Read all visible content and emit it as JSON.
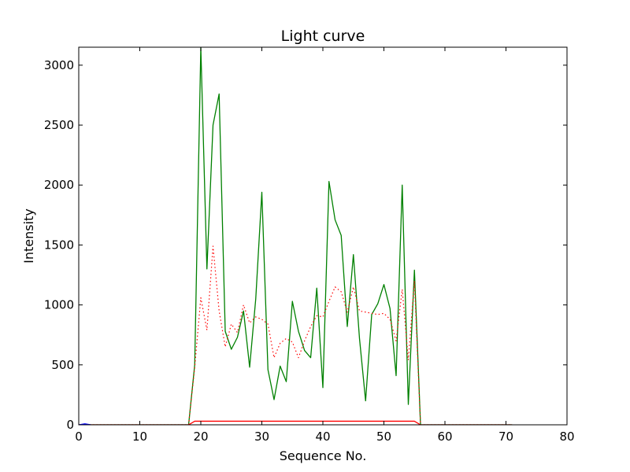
{
  "chart_data": {
    "type": "line",
    "title": "Light curve",
    "xlabel": "Sequence No.",
    "ylabel": "Intensity",
    "xlim": [
      0,
      80
    ],
    "ylim": [
      0,
      3150
    ],
    "xticks": [
      0,
      10,
      20,
      30,
      40,
      50,
      60,
      70,
      80
    ],
    "yticks": [
      0,
      500,
      1000,
      1500,
      2000,
      2500,
      3000
    ],
    "grid": false,
    "series": [
      {
        "style": "solid",
        "color": "#008000",
        "x": [
          0,
          1,
          2,
          3,
          4,
          5,
          6,
          7,
          8,
          9,
          10,
          11,
          12,
          13,
          14,
          15,
          16,
          17,
          18,
          19,
          20,
          21,
          22,
          23,
          24,
          25,
          26,
          27,
          28,
          29,
          30,
          31,
          32,
          33,
          34,
          35,
          36,
          37,
          38,
          39,
          40,
          41,
          42,
          43,
          44,
          45,
          46,
          47,
          48,
          49,
          50,
          51,
          52,
          53,
          54,
          55,
          56,
          57,
          58,
          59,
          60,
          61,
          62,
          63,
          64,
          65,
          66,
          67,
          68,
          69,
          70,
          71
        ],
        "y": [
          0,
          0,
          0,
          0,
          0,
          0,
          0,
          0,
          0,
          0,
          0,
          0,
          0,
          0,
          0,
          0,
          0,
          0,
          0,
          500,
          3150,
          1300,
          2500,
          2760,
          780,
          630,
          730,
          950,
          480,
          1050,
          1940,
          460,
          210,
          490,
          360,
          1030,
          780,
          620,
          560,
          1140,
          310,
          2030,
          1710,
          1580,
          820,
          1420,
          720,
          200,
          920,
          1010,
          1170,
          970,
          410,
          2000,
          170,
          1290,
          0,
          0,
          0,
          0,
          0,
          0,
          0,
          0,
          0,
          0,
          0,
          0,
          0,
          0,
          0,
          0
        ]
      },
      {
        "style": "dotted",
        "color": "#ff0000",
        "x": [
          0,
          1,
          2,
          3,
          4,
          5,
          6,
          7,
          8,
          9,
          10,
          11,
          12,
          13,
          14,
          15,
          16,
          17,
          18,
          19,
          20,
          21,
          22,
          23,
          24,
          25,
          26,
          27,
          28,
          29,
          30,
          31,
          32,
          33,
          34,
          35,
          36,
          37,
          38,
          39,
          40,
          41,
          42,
          43,
          44,
          45,
          46,
          47,
          48,
          49,
          50,
          51,
          52,
          53,
          54,
          55,
          56,
          57,
          58,
          59,
          60,
          61,
          62,
          63,
          64,
          65,
          66,
          67,
          68,
          69,
          70,
          71
        ],
        "y": [
          0,
          0,
          0,
          0,
          0,
          0,
          0,
          0,
          0,
          0,
          0,
          0,
          0,
          0,
          0,
          0,
          0,
          0,
          0,
          480,
          1060,
          790,
          1490,
          950,
          650,
          840,
          770,
          1000,
          850,
          900,
          880,
          840,
          560,
          680,
          720,
          690,
          560,
          700,
          820,
          910,
          900,
          1030,
          1150,
          1110,
          940,
          1150,
          950,
          940,
          930,
          920,
          930,
          880,
          700,
          1130,
          540,
          1200,
          0,
          0,
          0,
          0,
          0,
          0,
          0,
          0,
          0,
          0,
          0,
          0,
          0,
          0,
          0,
          0
        ]
      },
      {
        "style": "solid",
        "color": "#ff0000",
        "x": [
          0,
          1,
          2,
          3,
          4,
          5,
          6,
          7,
          8,
          9,
          10,
          11,
          12,
          13,
          14,
          15,
          16,
          17,
          18,
          19,
          20,
          21,
          22,
          23,
          24,
          25,
          26,
          27,
          28,
          29,
          30,
          31,
          32,
          33,
          34,
          35,
          36,
          37,
          38,
          39,
          40,
          41,
          42,
          43,
          44,
          45,
          46,
          47,
          48,
          49,
          50,
          51,
          52,
          53,
          54,
          55,
          56,
          57,
          58,
          59,
          60,
          61,
          62,
          63,
          64,
          65,
          66,
          67,
          68,
          69,
          70,
          71
        ],
        "y": [
          0,
          0,
          0,
          0,
          0,
          0,
          0,
          0,
          0,
          0,
          0,
          0,
          0,
          0,
          0,
          0,
          0,
          0,
          0,
          30,
          30,
          30,
          30,
          30,
          30,
          30,
          30,
          30,
          30,
          30,
          30,
          30,
          30,
          30,
          30,
          30,
          30,
          30,
          30,
          30,
          30,
          30,
          30,
          30,
          30,
          30,
          30,
          30,
          30,
          30,
          30,
          30,
          30,
          30,
          30,
          30,
          0,
          0,
          0,
          0,
          0,
          0,
          0,
          0,
          0,
          0,
          0,
          0,
          0,
          0,
          0,
          0
        ]
      },
      {
        "style": "solid",
        "color": "#0000ff",
        "x": [
          0,
          1,
          2
        ],
        "y": [
          0,
          8,
          0
        ]
      }
    ]
  }
}
